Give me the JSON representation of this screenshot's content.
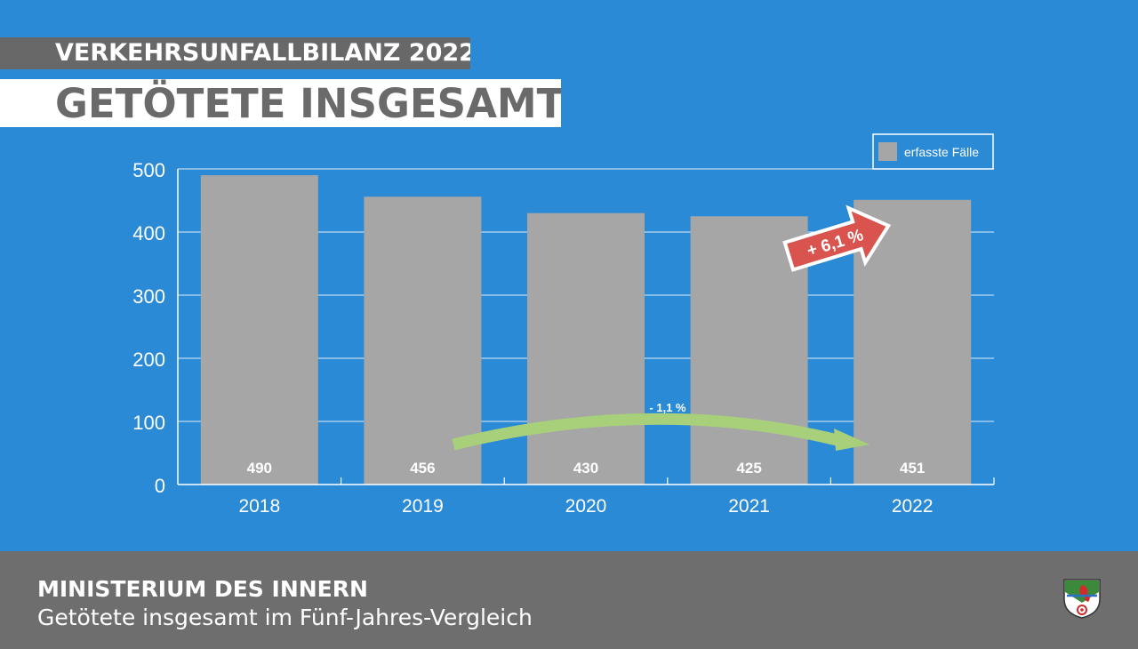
{
  "header": {
    "kicker": "VERKEHRSUNFALLBILANZ 2022",
    "title": "GETÖTETE INSGESAMT"
  },
  "footer": {
    "organization": "MINISTERIUM DES INNERN",
    "subtitle": "Getötete insgesamt im Fünf-Jahres-Vergleich"
  },
  "chart_data": {
    "type": "bar",
    "categories": [
      "2018",
      "2019",
      "2020",
      "2021",
      "2022"
    ],
    "series": [
      {
        "name": "erfasste Fälle",
        "values": [
          490,
          456,
          430,
          425,
          451
        ]
      }
    ],
    "ylim": [
      0,
      500
    ],
    "yticks": [
      0,
      100,
      200,
      300,
      400,
      500
    ],
    "grid": true,
    "legend_position": "top-right",
    "annotations": {
      "trend_label": "- 1,1 %",
      "change_label": "+ 6,1 %"
    }
  },
  "colors": {
    "background": "#2a8ad6",
    "bar": "#a6a6a6",
    "trend_arrow": "#a8d07a",
    "change_arrow": "#d9534f",
    "footer": "#6e6e6e"
  }
}
